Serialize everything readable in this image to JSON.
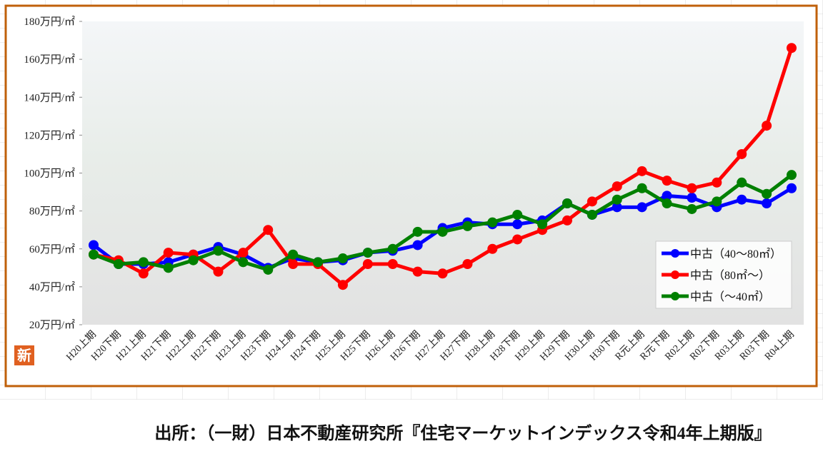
{
  "chart_data": {
    "type": "line",
    "categories": [
      "H20上期",
      "H20下期",
      "H21上期",
      "H21下期",
      "H22上期",
      "H22下期",
      "H23上期",
      "H23下期",
      "H24上期",
      "H24下期",
      "H25上期",
      "H25下期",
      "H26上期",
      "H26下期",
      "H27上期",
      "H27下期",
      "H28上期",
      "H28下期",
      "H29上期",
      "H29下期",
      "H30上期",
      "H30下期",
      "R元上期",
      "R元下期",
      "R02上期",
      "R02下期",
      "R03上期",
      "R03下期",
      "R04上期"
    ],
    "series": [
      {
        "name": "中古（40～80㎡）",
        "color": "#0000ff",
        "values": [
          62,
          52,
          52,
          53,
          57,
          61,
          57,
          50,
          55,
          53,
          54,
          58,
          59,
          62,
          71,
          74,
          73,
          73,
          75,
          84,
          78,
          82,
          82,
          88,
          87,
          82,
          86,
          84,
          92
        ]
      },
      {
        "name": "中古（80㎡～）",
        "color": "#ff0000",
        "values": [
          57,
          54,
          47,
          58,
          57,
          48,
          58,
          70,
          52,
          52,
          41,
          52,
          52,
          48,
          47,
          52,
          60,
          65,
          70,
          75,
          85,
          93,
          101,
          96,
          92,
          95,
          110,
          125,
          166
        ]
      },
      {
        "name": "中古（～40㎡）",
        "color": "#008000",
        "values": [
          57,
          52,
          53,
          50,
          54,
          59,
          53,
          49,
          57,
          53,
          55,
          58,
          60,
          69,
          69,
          72,
          74,
          78,
          73,
          84,
          78,
          86,
          92,
          84,
          81,
          85,
          95,
          89,
          99
        ]
      }
    ],
    "ylim": [
      20,
      180
    ],
    "yticks": [
      {
        "value": 20,
        "label": "20万円/㎡"
      },
      {
        "value": 40,
        "label": "40万円/㎡"
      },
      {
        "value": 60,
        "label": "60万円/㎡"
      },
      {
        "value": 80,
        "label": "80万円/㎡"
      },
      {
        "value": 100,
        "label": "100万円/㎡"
      },
      {
        "value": 120,
        "label": "120万円/㎡"
      },
      {
        "value": 140,
        "label": "140万円/㎡"
      },
      {
        "value": 160,
        "label": "160万円/㎡"
      },
      {
        "value": 180,
        "label": "180万円/㎡"
      }
    ],
    "legend": "lower right",
    "badge": "新",
    "source": "出所：（一財）日本不動産研究所『住宅マーケットインデックス令和4年上期版』"
  }
}
